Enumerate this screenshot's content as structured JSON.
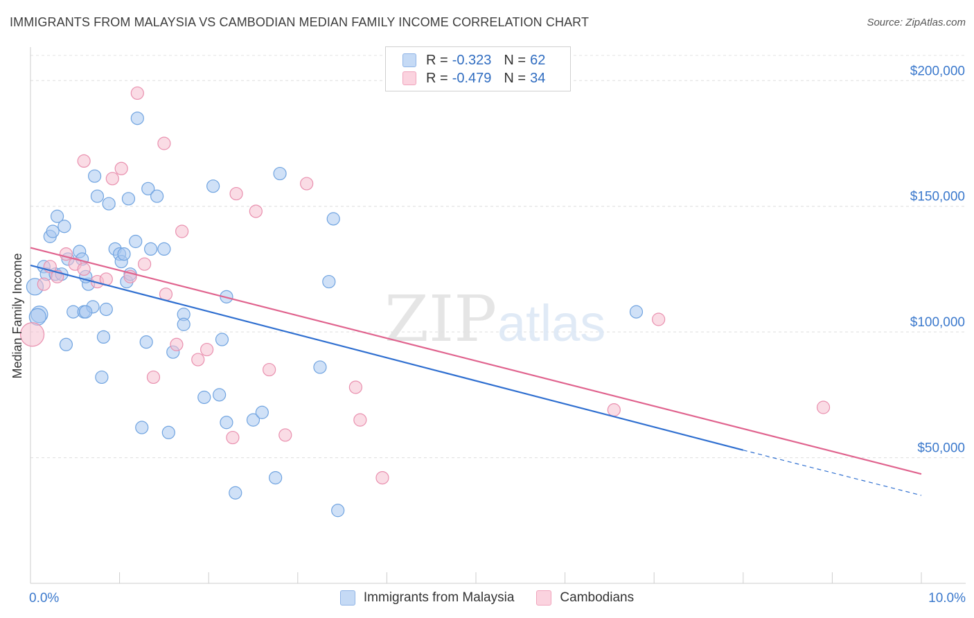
{
  "header": {
    "title": "IMMIGRANTS FROM MALAYSIA VS CAMBODIAN MEDIAN FAMILY INCOME CORRELATION CHART",
    "source": "Source: ZipAtlas.com"
  },
  "watermark": {
    "zip": "ZIP",
    "atlas": "atlas"
  },
  "legend": {
    "rows": [
      {
        "r_label": "R =",
        "r_value": "-0.323",
        "n_label": "N =",
        "n_value": "62",
        "color": "#a9c8f0"
      },
      {
        "r_label": "R =",
        "r_value": "-0.479",
        "n_label": "N =",
        "n_value": "34",
        "color": "#f6bfd0"
      }
    ]
  },
  "chart_data": {
    "type": "scatter",
    "ylabel": "Median Family Income",
    "xlim": [
      0,
      10
    ],
    "ylim": [
      0,
      210000
    ],
    "x_tick_labels": [
      "0.0%",
      "10.0%"
    ],
    "y_ticks": [
      50000,
      100000,
      150000,
      200000
    ],
    "y_tick_labels": [
      "$50,000",
      "$100,000",
      "$150,000",
      "$200,000"
    ],
    "grid": true,
    "series": [
      {
        "name": "Immigrants from Malaysia",
        "color": "#6fa3e0",
        "fill": "#a9c8f0",
        "line_color": "#2f6fd0",
        "trend": {
          "x0": 0.0,
          "y0": 126500,
          "x1": 8.0,
          "y1": 53000,
          "dash_to_x": 10.0,
          "dash_to_y": 35000
        },
        "points": [
          [
            0.05,
            118000
          ],
          [
            0.1,
            107000
          ],
          [
            0.08,
            106000
          ],
          [
            0.15,
            126000
          ],
          [
            0.18,
            123000
          ],
          [
            0.22,
            138000
          ],
          [
            0.25,
            140000
          ],
          [
            0.3,
            146000
          ],
          [
            0.38,
            142000
          ],
          [
            0.28,
            123000
          ],
          [
            0.35,
            123000
          ],
          [
            0.42,
            129000
          ],
          [
            0.55,
            132000
          ],
          [
            0.58,
            129000
          ],
          [
            0.48,
            108000
          ],
          [
            0.6,
            108000
          ],
          [
            0.65,
            119000
          ],
          [
            0.7,
            110000
          ],
          [
            0.72,
            162000
          ],
          [
            0.75,
            154000
          ],
          [
            0.85,
            109000
          ],
          [
            0.88,
            151000
          ],
          [
            0.95,
            133000
          ],
          [
            1.0,
            131000
          ],
          [
            1.02,
            128000
          ],
          [
            1.05,
            131000
          ],
          [
            1.08,
            120000
          ],
          [
            1.12,
            123000
          ],
          [
            1.1,
            153000
          ],
          [
            1.18,
            136000
          ],
          [
            1.2,
            185000
          ],
          [
            1.32,
            157000
          ],
          [
            1.35,
            133000
          ],
          [
            1.42,
            154000
          ],
          [
            1.5,
            133000
          ],
          [
            1.6,
            92000
          ],
          [
            1.72,
            107000
          ],
          [
            1.72,
            103000
          ],
          [
            1.3,
            96000
          ],
          [
            0.82,
            98000
          ],
          [
            0.4,
            95000
          ],
          [
            0.8,
            82000
          ],
          [
            1.25,
            62000
          ],
          [
            1.55,
            60000
          ],
          [
            1.95,
            74000
          ],
          [
            2.05,
            158000
          ],
          [
            2.12,
            75000
          ],
          [
            2.15,
            97000
          ],
          [
            2.2,
            64000
          ],
          [
            2.2,
            114000
          ],
          [
            2.3,
            36000
          ],
          [
            2.5,
            65000
          ],
          [
            2.6,
            68000
          ],
          [
            2.75,
            42000
          ],
          [
            2.8,
            163000
          ],
          [
            3.25,
            86000
          ],
          [
            3.35,
            120000
          ],
          [
            3.4,
            145000
          ],
          [
            3.45,
            29000
          ],
          [
            6.8,
            108000
          ],
          [
            0.62,
            108000
          ],
          [
            0.62,
            122000
          ]
        ]
      },
      {
        "name": "Cambodians",
        "color": "#e98fae",
        "fill": "#f6bfd0",
        "line_color": "#e0638e",
        "trend": {
          "x0": 0.0,
          "y0": 133500,
          "x1": 10.0,
          "y1": 43500
        },
        "points": [
          [
            0.02,
            99000
          ],
          [
            0.15,
            119000
          ],
          [
            0.22,
            126000
          ],
          [
            0.3,
            122000
          ],
          [
            0.4,
            131000
          ],
          [
            0.5,
            127000
          ],
          [
            0.6,
            125000
          ],
          [
            0.6,
            168000
          ],
          [
            0.75,
            120000
          ],
          [
            0.85,
            121000
          ],
          [
            0.92,
            161000
          ],
          [
            1.02,
            165000
          ],
          [
            1.12,
            122000
          ],
          [
            1.2,
            195000
          ],
          [
            1.28,
            127000
          ],
          [
            1.38,
            82000
          ],
          [
            1.5,
            175000
          ],
          [
            1.52,
            115000
          ],
          [
            1.64,
            95000
          ],
          [
            1.7,
            140000
          ],
          [
            1.88,
            89000
          ],
          [
            1.98,
            93000
          ],
          [
            2.27,
            58000
          ],
          [
            2.31,
            155000
          ],
          [
            2.53,
            148000
          ],
          [
            2.68,
            85000
          ],
          [
            2.86,
            59000
          ],
          [
            3.1,
            159000
          ],
          [
            3.65,
            78000
          ],
          [
            3.7,
            65000
          ],
          [
            3.95,
            42000
          ],
          [
            6.55,
            69000
          ],
          [
            7.05,
            105000
          ],
          [
            8.9,
            70000
          ]
        ]
      }
    ]
  }
}
